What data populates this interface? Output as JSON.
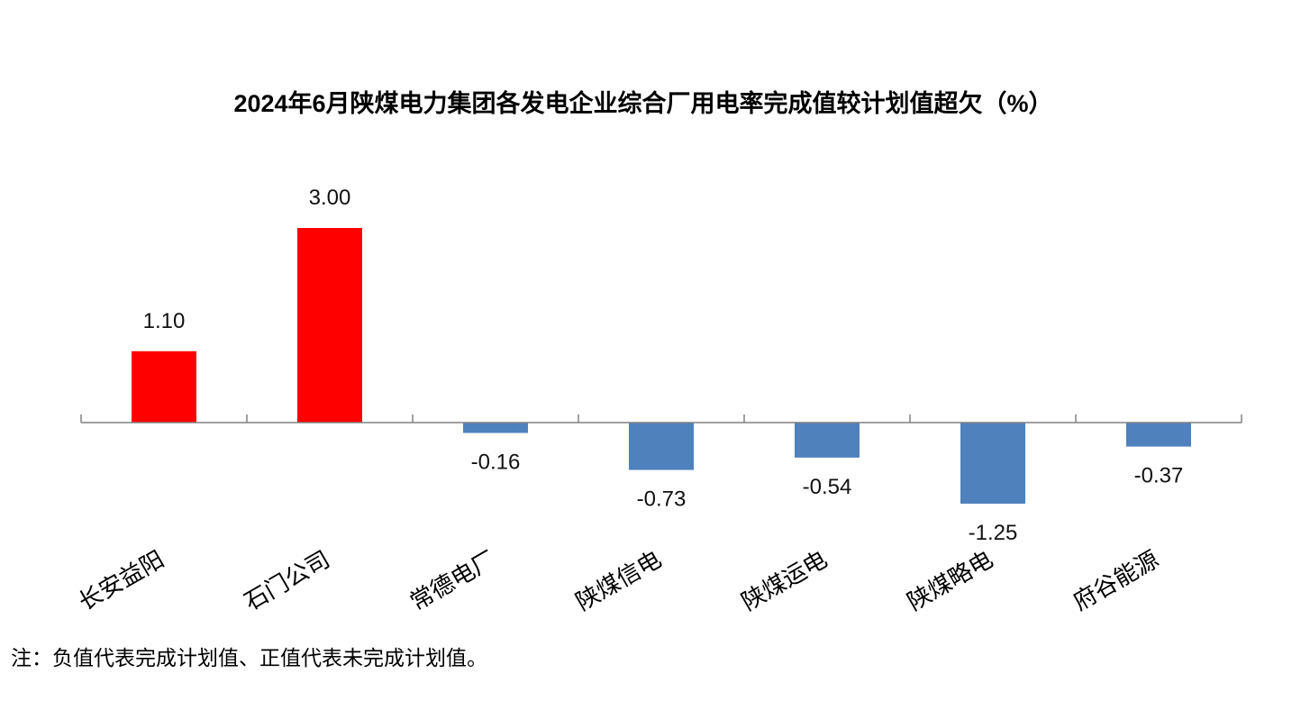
{
  "chart_data": {
    "type": "bar",
    "title": "2024年6月陕煤电力集团各发电企业综合厂用电率完成值较计划值超欠（%）",
    "categories": [
      "长安益阳",
      "石门公司",
      "常德电厂",
      "陕煤信电",
      "陕煤运电",
      "陕煤略电",
      "府谷能源"
    ],
    "values": [
      1.1,
      3.0,
      -0.16,
      -0.73,
      -0.54,
      -1.25,
      -0.37
    ],
    "data_labels": [
      "1.10",
      "3.00",
      "-0.16",
      "-0.73",
      "-0.54",
      "-1.25",
      "-0.37"
    ],
    "ylim": [
      -1.5,
      3.5
    ],
    "grid": false,
    "legend": "none",
    "colors": {
      "positive": "#FF0000",
      "negative": "#4F81BD",
      "axis": "#808080"
    }
  },
  "footnote": "注：负值代表完成计划值、正值代表未完成计划值。"
}
